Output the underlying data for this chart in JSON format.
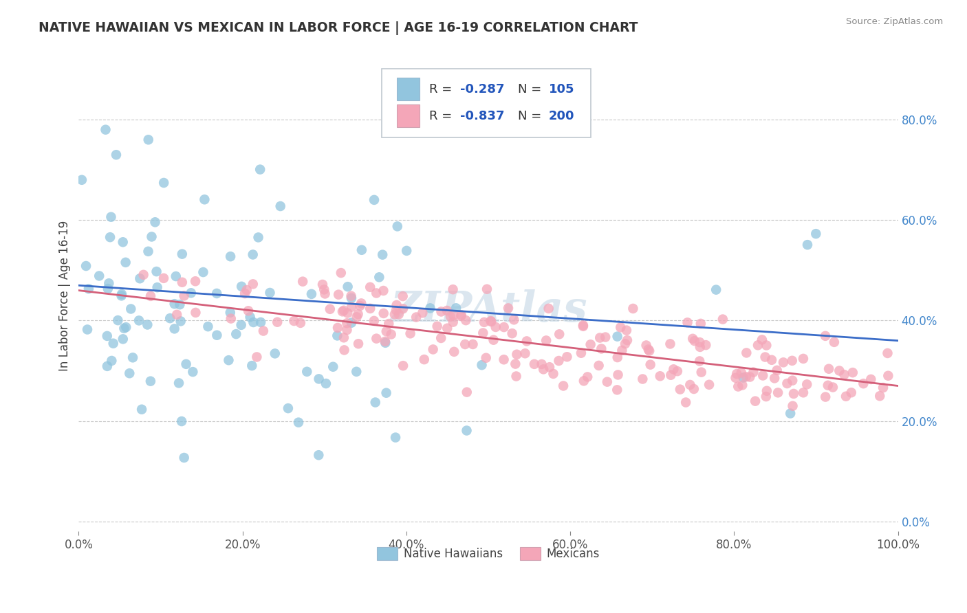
{
  "title": "NATIVE HAWAIIAN VS MEXICAN IN LABOR FORCE | AGE 16-19 CORRELATION CHART",
  "source": "Source: ZipAtlas.com",
  "ylabel": "In Labor Force | Age 16-19",
  "xlim": [
    0.0,
    1.0
  ],
  "ylim": [
    -0.02,
    0.92
  ],
  "x_ticks": [
    0.0,
    0.2,
    0.4,
    0.6,
    0.8,
    1.0
  ],
  "x_tick_labels": [
    "0.0%",
    "20.0%",
    "40.0%",
    "60.0%",
    "80.0%",
    "100.0%"
  ],
  "y_ticks_right": [
    0.0,
    0.2,
    0.4,
    0.6,
    0.8
  ],
  "y_tick_labels_right": [
    "0.0%",
    "20.0%",
    "40.0%",
    "60.0%",
    "80.0%"
  ],
  "blue_color": "#92C5DE",
  "pink_color": "#F4A6B8",
  "blue_line_color": "#3B6DC8",
  "pink_line_color": "#D4607A",
  "legend_r1": "-0.287",
  "legend_n1": "105",
  "legend_r2": "-0.837",
  "legend_n2": "200",
  "watermark_text": "ZIPAtlas",
  "seed": 123
}
